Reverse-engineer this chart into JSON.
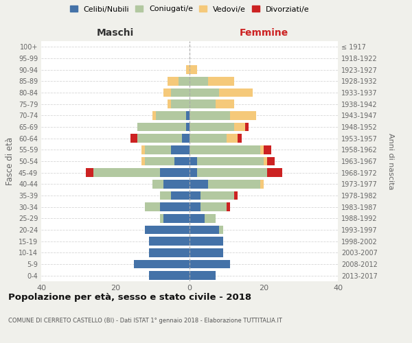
{
  "age_groups": [
    "0-4",
    "5-9",
    "10-14",
    "15-19",
    "20-24",
    "25-29",
    "30-34",
    "35-39",
    "40-44",
    "45-49",
    "50-54",
    "55-59",
    "60-64",
    "65-69",
    "70-74",
    "75-79",
    "80-84",
    "85-89",
    "90-94",
    "95-99",
    "100+"
  ],
  "birth_years": [
    "2013-2017",
    "2008-2012",
    "2003-2007",
    "1998-2002",
    "1993-1997",
    "1988-1992",
    "1983-1987",
    "1978-1982",
    "1973-1977",
    "1968-1972",
    "1963-1967",
    "1958-1962",
    "1953-1957",
    "1948-1952",
    "1943-1947",
    "1938-1942",
    "1933-1937",
    "1928-1932",
    "1923-1927",
    "1918-1922",
    "≤ 1917"
  ],
  "colors": {
    "celibe": "#4472a8",
    "coniugato": "#b2c8a0",
    "vedovo": "#f5c97a",
    "divorziato": "#cc2222"
  },
  "maschi": {
    "celibe": [
      11,
      15,
      11,
      11,
      12,
      7,
      8,
      5,
      7,
      8,
      4,
      5,
      2,
      1,
      1,
      0,
      0,
      0,
      0,
      0,
      0
    ],
    "coniugato": [
      0,
      0,
      0,
      0,
      0,
      1,
      4,
      3,
      3,
      18,
      8,
      7,
      12,
      13,
      8,
      5,
      5,
      3,
      0,
      0,
      0
    ],
    "vedovo": [
      0,
      0,
      0,
      0,
      0,
      0,
      0,
      0,
      0,
      0,
      1,
      1,
      0,
      0,
      1,
      1,
      2,
      3,
      1,
      0,
      0
    ],
    "divorziato": [
      0,
      0,
      0,
      0,
      0,
      0,
      0,
      0,
      0,
      2,
      0,
      0,
      2,
      0,
      0,
      0,
      0,
      0,
      0,
      0,
      0
    ]
  },
  "femmine": {
    "nubile": [
      7,
      11,
      9,
      9,
      8,
      4,
      3,
      3,
      5,
      2,
      2,
      0,
      0,
      0,
      0,
      0,
      0,
      0,
      0,
      0,
      0
    ],
    "coniugata": [
      0,
      0,
      0,
      0,
      1,
      3,
      7,
      9,
      14,
      19,
      18,
      19,
      10,
      12,
      11,
      7,
      8,
      5,
      0,
      0,
      0
    ],
    "vedova": [
      0,
      0,
      0,
      0,
      0,
      0,
      0,
      0,
      1,
      0,
      1,
      1,
      3,
      3,
      7,
      5,
      9,
      7,
      2,
      0,
      0
    ],
    "divorziata": [
      0,
      0,
      0,
      0,
      0,
      0,
      1,
      1,
      0,
      4,
      2,
      2,
      1,
      1,
      0,
      0,
      0,
      0,
      0,
      0,
      0
    ]
  },
  "xlim": 40,
  "title": "Popolazione per età, sesso e stato civile - 2018",
  "subtitle": "COMUNE DI CERRETO CASTELLO (BI) - Dati ISTAT 1° gennaio 2018 - Elaborazione TUTTITALIA.IT",
  "xlabel_left": "Maschi",
  "xlabel_right": "Femmine",
  "ylabel": "Fasce di età",
  "ylabel_right": "Anni di nascita",
  "bg_color": "#f0f0eb",
  "plot_bg": "#ffffff",
  "grid_color": "#cccccc",
  "legend_labels": [
    "Celibi/Nubili",
    "Coniugati/e",
    "Vedovi/e",
    "Divorziati/e"
  ]
}
